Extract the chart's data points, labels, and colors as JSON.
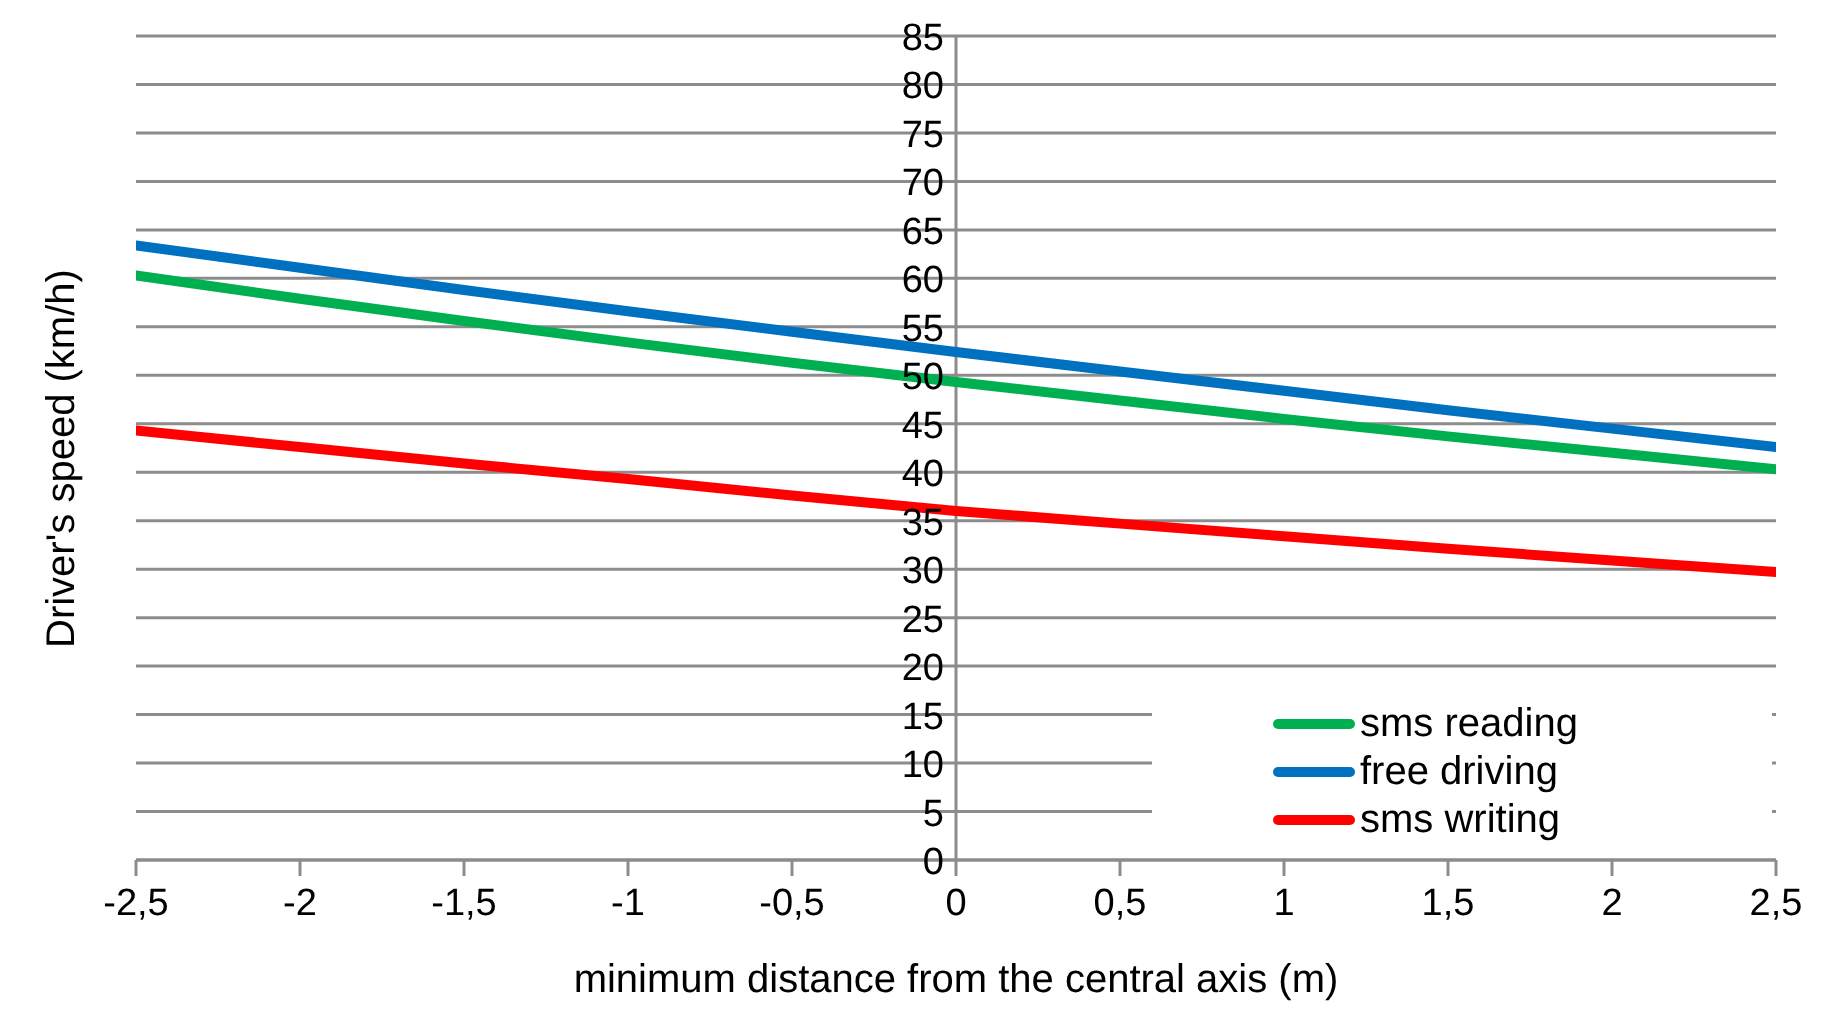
{
  "chart_data": {
    "type": "line",
    "xlabel": "minimum distance from the central axis (m)",
    "ylabel": "Driver's speed (km/h)",
    "x": [
      -2.5,
      -2,
      -1.5,
      -1,
      -0.5,
      0,
      0.5,
      1,
      1.5,
      2,
      2.5
    ],
    "series": [
      {
        "name": "sms reading",
        "color": "#00b050",
        "values": [
          60.3,
          57.9,
          55.6,
          53.4,
          51.3,
          49.3,
          47.4,
          45.5,
          43.7,
          42.0,
          40.3
        ]
      },
      {
        "name": "free driving",
        "color": "#0070c0",
        "values": [
          63.4,
          61.1,
          58.8,
          56.6,
          54.5,
          52.4,
          50.4,
          48.4,
          46.4,
          44.5,
          42.6
        ]
      },
      {
        "name": "sms writing",
        "color": "#ff0000",
        "values": [
          44.3,
          42.6,
          40.9,
          39.3,
          37.6,
          36.0,
          34.7,
          33.4,
          32.1,
          30.9,
          29.7
        ]
      }
    ],
    "xlim": [
      -2.5,
      2.5
    ],
    "xticks": [
      {
        "value": -2.5,
        "label": "-2,5"
      },
      -2,
      {
        "value": -1.5,
        "label": "-1,5"
      },
      -1,
      {
        "value": -0.5,
        "label": "-0,5"
      },
      0,
      {
        "value": 0.5,
        "label": "0,5"
      },
      1,
      {
        "value": 1.5,
        "label": "1,5"
      },
      2,
      {
        "value": 2.5,
        "label": "2,5"
      }
    ],
    "ylim": [
      0,
      85
    ],
    "yticks": [
      0,
      5,
      10,
      15,
      20,
      25,
      30,
      35,
      40,
      45,
      50,
      55,
      60,
      65,
      70,
      75,
      80,
      85
    ],
    "grid": "y",
    "legend": "bottom right",
    "marker": "none",
    "line_style": "solid"
  }
}
